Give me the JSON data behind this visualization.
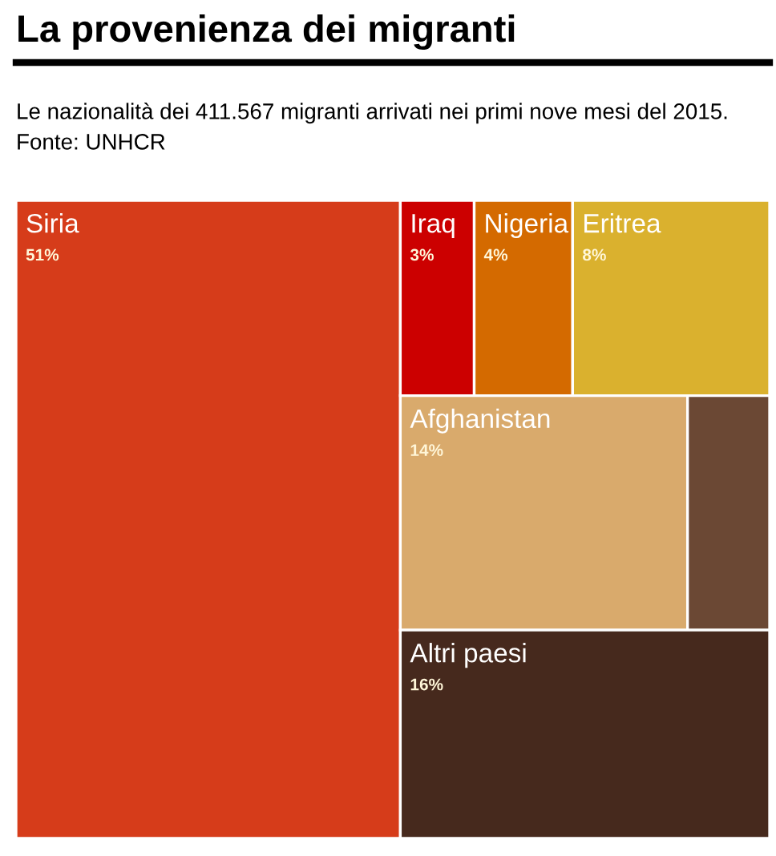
{
  "chart_data": {
    "type": "other",
    "title": "La provenienza dei migranti",
    "subtitle": "Le nazionalità dei 411.567 migranti arrivati nei primi nove mesi del 2015. Fonte: UNHCR",
    "categories": [
      "Siria",
      "Iraq",
      "Nigeria",
      "Eritrea",
      "Afghanistan",
      null,
      "Altri paesi"
    ],
    "values": [
      51,
      3,
      4,
      8,
      14,
      null,
      16
    ],
    "value_labels": [
      "51%",
      "3%",
      "4%",
      "8%",
      "14%",
      null,
      "16%"
    ],
    "colors": [
      "#d63c1a",
      "#cc0000",
      "#d46a00",
      "#dab12e",
      "#d9aa6c",
      "#6b4834",
      "#46291d"
    ]
  }
}
